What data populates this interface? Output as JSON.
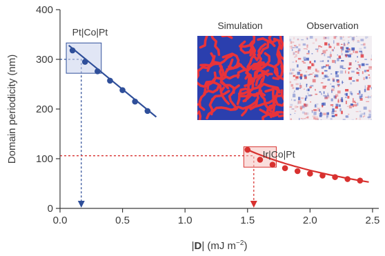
{
  "chart_data": {
    "type": "scatter",
    "xlabel_parts": {
      "pre": "|",
      "bold": "D",
      "post": "| (mJ m",
      "sup": "−2",
      "end": ")"
    },
    "ylabel": "Domain periodicity (nm)",
    "xlim": [
      0.0,
      2.55
    ],
    "ylim": [
      0,
      400
    ],
    "x_ticks": [
      "0.0",
      "0.5",
      "1.0",
      "1.5",
      "2.0",
      "2.5"
    ],
    "x_tick_values": [
      0.0,
      0.5,
      1.0,
      1.5,
      2.0,
      2.5
    ],
    "y_ticks": [
      "0",
      "100",
      "200",
      "300",
      "400"
    ],
    "y_tick_values": [
      0,
      100,
      200,
      300,
      400
    ],
    "grid": false,
    "series": [
      {
        "name": "Pt|Co|Pt",
        "color": "#2f4f9a",
        "x": [
          0.1,
          0.2,
          0.3,
          0.4,
          0.5,
          0.6,
          0.7
        ],
        "y": [
          318,
          295,
          276,
          257,
          238,
          215,
          196
        ],
        "fit_x": [
          0.07,
          0.77
        ],
        "fit_y": [
          328,
          184
        ]
      },
      {
        "name": "Ir|Co|Pt",
        "color": "#d8312f",
        "x": [
          1.5,
          1.6,
          1.7,
          1.8,
          1.9,
          2.0,
          2.1,
          2.2,
          2.3,
          2.4
        ],
        "y": [
          118,
          98,
          88,
          81,
          75,
          70,
          66,
          63,
          59,
          56
        ],
        "fit": "decay"
      }
    ],
    "annotations": [
      {
        "text": "Pt|Co|Pt",
        "color": "#2f4f9a",
        "at_x": 0.24,
        "at_y": 348
      },
      {
        "text": "Ir|Co|Pt",
        "color": "#d8312f",
        "at_x": 1.75,
        "at_y": 102
      }
    ],
    "highlight_boxes": [
      {
        "series": "Pt|Co|Pt",
        "x0": 0.05,
        "x1": 0.33,
        "y0": 272,
        "y1": 333,
        "color": "#2f4f9a",
        "fill": "#c9d2ec"
      },
      {
        "series": "Ir|Co|Pt",
        "x0": 1.47,
        "x1": 1.73,
        "y0": 83,
        "y1": 124,
        "color": "#d8312f",
        "fill": "#f6c3c0"
      }
    ],
    "reference_lines": [
      {
        "color": "#2f4f9a",
        "from": [
          0.0,
          300
        ],
        "corner": [
          0.17,
          300
        ],
        "to_y": 0
      },
      {
        "color": "#d8312f",
        "from": [
          0.0,
          106
        ],
        "corner": [
          1.55,
          106
        ],
        "to_y": 0
      }
    ],
    "insets": [
      {
        "title": "Simulation",
        "kind": "maze-pattern"
      },
      {
        "title": "Observation",
        "kind": "noisy-pattern"
      }
    ]
  }
}
